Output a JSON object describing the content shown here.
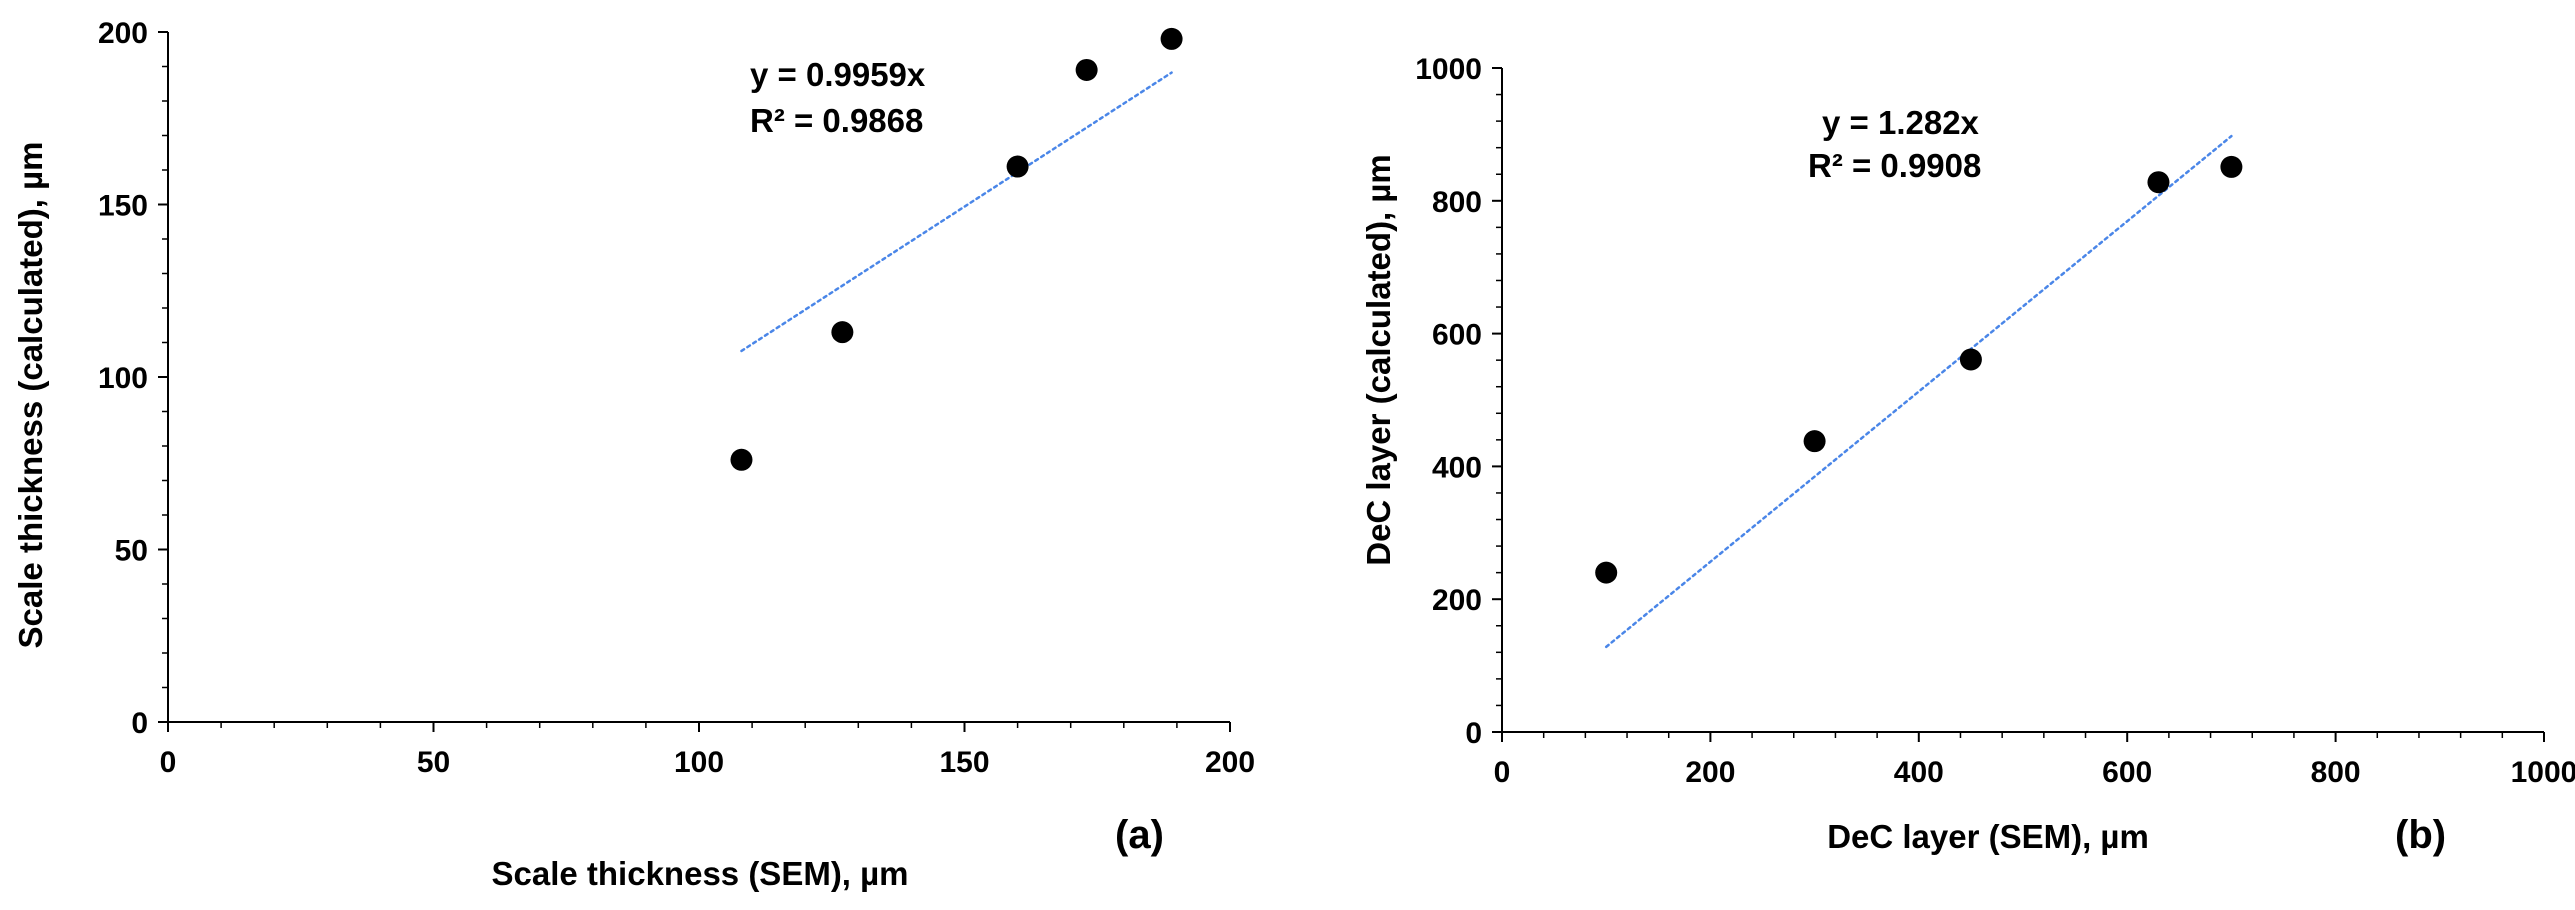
{
  "chart_data": [
    {
      "type": "scatter",
      "panel_label": "(a)",
      "xlabel": "Scale thickness (SEM), µm",
      "ylabel": "Scale thickness (calculated), µm",
      "xlim": [
        0,
        200
      ],
      "ylim": [
        0,
        200
      ],
      "x_ticks": [
        0,
        50,
        100,
        150,
        200
      ],
      "y_ticks": [
        0,
        50,
        100,
        150,
        200
      ],
      "points": [
        {
          "x": 108,
          "y": 76
        },
        {
          "x": 127,
          "y": 113
        },
        {
          "x": 160,
          "y": 161
        },
        {
          "x": 173,
          "y": 189
        },
        {
          "x": 189,
          "y": 198
        }
      ],
      "trendline": {
        "slope": 0.9959,
        "x_range": [
          108,
          189
        ],
        "style": "dotted",
        "color": "#4a86e8"
      },
      "equation": "y = 0.9959x",
      "r_squared": "R² = 0.9868",
      "grid": false
    },
    {
      "type": "scatter",
      "panel_label": "(b)",
      "xlabel": "DeC layer (SEM), µm",
      "ylabel": "DeC layer (calculated), µm",
      "xlim": [
        0,
        1000
      ],
      "ylim": [
        0,
        1000
      ],
      "x_ticks": [
        0,
        200,
        400,
        600,
        800,
        1000
      ],
      "y_ticks": [
        0,
        200,
        400,
        600,
        800,
        1000
      ],
      "points": [
        {
          "x": 100,
          "y": 240
        },
        {
          "x": 300,
          "y": 438
        },
        {
          "x": 450,
          "y": 561
        },
        {
          "x": 630,
          "y": 828
        },
        {
          "x": 700,
          "y": 851
        }
      ],
      "trendline": {
        "slope": 1.282,
        "x_range": [
          100,
          700
        ],
        "style": "dotted",
        "color": "#4a86e8"
      },
      "equation": "y = 1.282x",
      "r_squared": "R² = 0.9908",
      "grid": false
    }
  ]
}
